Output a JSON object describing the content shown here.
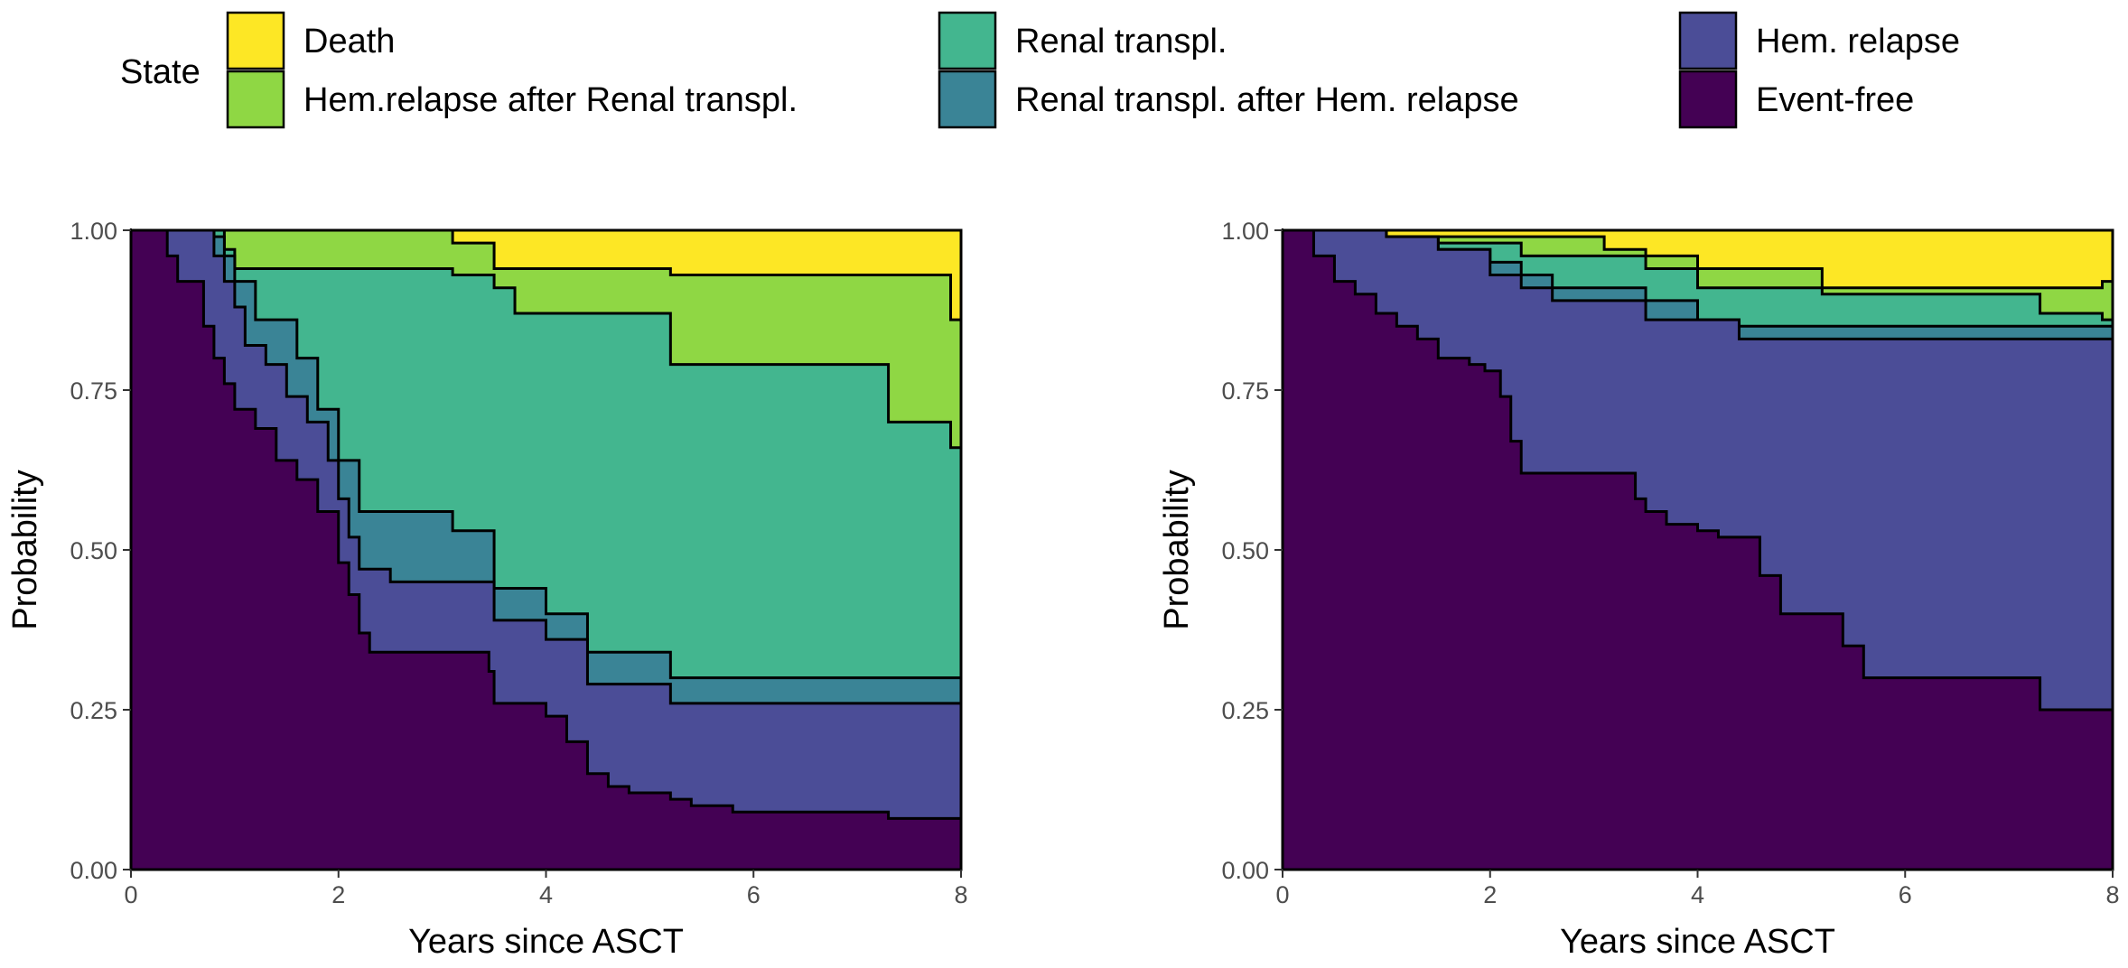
{
  "legend": {
    "title": "State",
    "entries": [
      {
        "label": "Death",
        "color": "#FDE725"
      },
      {
        "label": "Hem.relapse after Renal transpl.",
        "color": "#8FD744"
      },
      {
        "label": "Renal transpl.",
        "color": "#43B68F"
      },
      {
        "label": "Renal transpl. after Hem. relapse",
        "color": "#3A8496"
      },
      {
        "label": "Hem. relapse",
        "color": "#4B4D97"
      },
      {
        "label": "Event-free",
        "color": "#440154"
      }
    ]
  },
  "chart_data": [
    {
      "type": "area",
      "subtype": "stacked-step",
      "xlabel": "Years since ASCT",
      "ylabel": "Probability",
      "xlim": [
        0,
        8
      ],
      "ylim": [
        0,
        1
      ],
      "xticks": [
        "0",
        "2",
        "4",
        "6",
        "8"
      ],
      "yticks": [
        "0.00",
        "0.25",
        "0.50",
        "0.75",
        "1.00"
      ],
      "grid": false,
      "series": [
        {
          "name": "Event-free",
          "color": "#440154",
          "upper": [
            [
              0,
              1.0
            ],
            [
              0.35,
              0.96
            ],
            [
              0.45,
              0.92
            ],
            [
              0.7,
              0.85
            ],
            [
              0.8,
              0.8
            ],
            [
              0.9,
              0.76
            ],
            [
              1.0,
              0.72
            ],
            [
              1.2,
              0.69
            ],
            [
              1.4,
              0.64
            ],
            [
              1.6,
              0.61
            ],
            [
              1.8,
              0.56
            ],
            [
              2.0,
              0.48
            ],
            [
              2.1,
              0.43
            ],
            [
              2.2,
              0.37
            ],
            [
              2.3,
              0.34
            ],
            [
              3.45,
              0.31
            ],
            [
              3.5,
              0.26
            ],
            [
              4.0,
              0.24
            ],
            [
              4.2,
              0.2
            ],
            [
              4.4,
              0.15
            ],
            [
              4.6,
              0.13
            ],
            [
              4.8,
              0.12
            ],
            [
              5.2,
              0.11
            ],
            [
              5.4,
              0.1
            ],
            [
              5.8,
              0.09
            ],
            [
              7.3,
              0.08
            ],
            [
              8,
              0.08
            ]
          ]
        },
        {
          "name": "Hem. relapse",
          "color": "#4B4D97",
          "upper": [
            [
              0,
              1.0
            ],
            [
              0.6,
              1.0
            ],
            [
              0.8,
              0.96
            ],
            [
              0.9,
              0.92
            ],
            [
              1.0,
              0.88
            ],
            [
              1.1,
              0.82
            ],
            [
              1.3,
              0.79
            ],
            [
              1.5,
              0.74
            ],
            [
              1.7,
              0.7
            ],
            [
              1.9,
              0.64
            ],
            [
              2.0,
              0.58
            ],
            [
              2.1,
              0.52
            ],
            [
              2.2,
              0.47
            ],
            [
              2.5,
              0.45
            ],
            [
              3.5,
              0.39
            ],
            [
              4.0,
              0.36
            ],
            [
              4.4,
              0.29
            ],
            [
              5.2,
              0.26
            ],
            [
              8,
              0.26
            ]
          ]
        },
        {
          "name": "Renal transpl. after Hem. relapse",
          "color": "#3A8496",
          "upper": [
            [
              0,
              1.0
            ],
            [
              0.6,
              1.0
            ],
            [
              0.8,
              0.99
            ],
            [
              0.9,
              0.96
            ],
            [
              1.0,
              0.92
            ],
            [
              1.2,
              0.86
            ],
            [
              1.6,
              0.8
            ],
            [
              1.8,
              0.72
            ],
            [
              2.0,
              0.64
            ],
            [
              2.2,
              0.56
            ],
            [
              3.1,
              0.53
            ],
            [
              3.5,
              0.44
            ],
            [
              4.0,
              0.4
            ],
            [
              4.4,
              0.34
            ],
            [
              5.2,
              0.3
            ],
            [
              8,
              0.26
            ]
          ]
        },
        {
          "name": "Renal transpl.",
          "color": "#43B68F",
          "upper": [
            [
              0,
              1.0
            ],
            [
              0.8,
              1.0
            ],
            [
              0.9,
              0.97
            ],
            [
              1.0,
              0.94
            ],
            [
              3.1,
              0.93
            ],
            [
              3.5,
              0.91
            ],
            [
              3.7,
              0.87
            ],
            [
              5.2,
              0.79
            ],
            [
              7.3,
              0.7
            ],
            [
              7.9,
              0.66
            ],
            [
              8,
              0.66
            ]
          ]
        },
        {
          "name": "Hem.relapse after Renal transpl.",
          "color": "#8FD744",
          "upper": [
            [
              0,
              1.0
            ],
            [
              3.1,
              0.98
            ],
            [
              3.5,
              0.94
            ],
            [
              5.2,
              0.93
            ],
            [
              7.9,
              0.86
            ],
            [
              8,
              0.86
            ]
          ]
        },
        {
          "name": "Death",
          "color": "#FDE725",
          "upper": [
            [
              0,
              1.0
            ],
            [
              8,
              1.0
            ]
          ]
        }
      ]
    },
    {
      "type": "area",
      "subtype": "stacked-step",
      "xlabel": "Years since ASCT",
      "ylabel": "Probability",
      "xlim": [
        0,
        8
      ],
      "ylim": [
        0,
        1
      ],
      "xticks": [
        "0",
        "2",
        "4",
        "6",
        "8"
      ],
      "yticks": [
        "0.00",
        "0.25",
        "0.50",
        "0.75",
        "1.00"
      ],
      "grid": false,
      "series": [
        {
          "name": "Event-free",
          "color": "#440154",
          "upper": [
            [
              0,
              1.0
            ],
            [
              0.3,
              0.96
            ],
            [
              0.5,
              0.92
            ],
            [
              0.7,
              0.9
            ],
            [
              0.9,
              0.87
            ],
            [
              1.1,
              0.85
            ],
            [
              1.3,
              0.83
            ],
            [
              1.5,
              0.8
            ],
            [
              1.8,
              0.79
            ],
            [
              1.95,
              0.78
            ],
            [
              2.1,
              0.74
            ],
            [
              2.2,
              0.67
            ],
            [
              2.3,
              0.62
            ],
            [
              3.4,
              0.58
            ],
            [
              3.5,
              0.56
            ],
            [
              3.7,
              0.54
            ],
            [
              4.0,
              0.53
            ],
            [
              4.2,
              0.52
            ],
            [
              4.6,
              0.46
            ],
            [
              4.8,
              0.4
            ],
            [
              5.4,
              0.35
            ],
            [
              5.6,
              0.3
            ],
            [
              7.3,
              0.25
            ],
            [
              8,
              0.25
            ]
          ]
        },
        {
          "name": "Hem. relapse",
          "color": "#4B4D97",
          "upper": [
            [
              0,
              1.0
            ],
            [
              1.0,
              0.99
            ],
            [
              1.5,
              0.97
            ],
            [
              2.0,
              0.93
            ],
            [
              2.3,
              0.91
            ],
            [
              2.6,
              0.89
            ],
            [
              3.1,
              0.89
            ],
            [
              3.5,
              0.86
            ],
            [
              4.4,
              0.83
            ],
            [
              8,
              0.82
            ]
          ]
        },
        {
          "name": "Renal transpl. after Hem. relapse",
          "color": "#3A8496",
          "upper": [
            [
              0,
              1.0
            ],
            [
              1.0,
              0.99
            ],
            [
              1.5,
              0.97
            ],
            [
              2.0,
              0.95
            ],
            [
              2.3,
              0.93
            ],
            [
              2.6,
              0.91
            ],
            [
              3.1,
              0.91
            ],
            [
              3.5,
              0.89
            ],
            [
              4.0,
              0.86
            ],
            [
              4.4,
              0.85
            ],
            [
              8,
              0.83
            ]
          ]
        },
        {
          "name": "Renal transpl.",
          "color": "#43B68F",
          "upper": [
            [
              0,
              1.0
            ],
            [
              1.0,
              0.99
            ],
            [
              1.5,
              0.98
            ],
            [
              2.0,
              0.98
            ],
            [
              2.3,
              0.96
            ],
            [
              3.1,
              0.96
            ],
            [
              3.5,
              0.94
            ],
            [
              4.0,
              0.91
            ],
            [
              5.2,
              0.9
            ],
            [
              7.3,
              0.87
            ],
            [
              7.9,
              0.86
            ],
            [
              8,
              0.85
            ]
          ]
        },
        {
          "name": "Hem.relapse after Renal transpl.",
          "color": "#8FD744",
          "upper": [
            [
              0,
              1.0
            ],
            [
              0.9,
              0.99
            ],
            [
              1.5,
              0.99
            ],
            [
              3.1,
              0.97
            ],
            [
              3.5,
              0.96
            ],
            [
              4.0,
              0.94
            ],
            [
              5.2,
              0.91
            ],
            [
              7.3,
              0.91
            ],
            [
              7.9,
              0.92
            ],
            [
              8,
              0.92
            ]
          ]
        },
        {
          "name": "Death",
          "color": "#FDE725",
          "upper": [
            [
              0,
              1.0
            ],
            [
              8,
              1.0
            ]
          ]
        }
      ]
    }
  ]
}
